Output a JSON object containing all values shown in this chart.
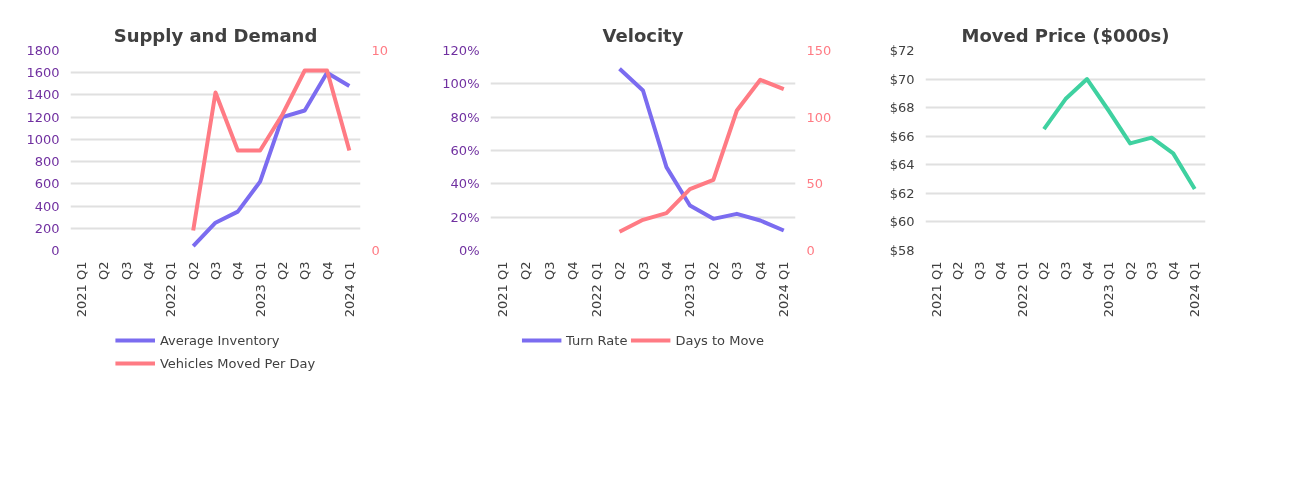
{
  "chart_data": [
    {
      "type": "line",
      "title": "Supply and Demand",
      "categories": [
        "2021 Q1",
        "Q2",
        "Q3",
        "Q4",
        "2022 Q1",
        "Q2",
        "Q3",
        "Q4",
        "2023 Q1",
        "Q2",
        "Q3",
        "Q4",
        "2024 Q1"
      ],
      "series": [
        {
          "name": "Average Inventory",
          "color": "#7b6cf0",
          "values": [
            null,
            null,
            null,
            null,
            null,
            40,
            250,
            350,
            620,
            1200,
            1260,
            1600,
            1480
          ]
        },
        {
          "name": "Vehicles Moved Per Day",
          "color": "#ff7b84",
          "axis": "y2",
          "values": [
            null,
            null,
            null,
            null,
            null,
            1.0,
            7.9,
            5.0,
            5.0,
            6.8,
            9.0,
            9.0,
            5.0
          ]
        }
      ],
      "ylim": [
        0,
        1800
      ],
      "yticks": [
        0,
        200,
        400,
        600,
        800,
        1000,
        1200,
        1400,
        1600,
        1800
      ],
      "y2lim": [
        0,
        10
      ],
      "y2ticks": [
        0,
        10
      ],
      "grid": "y",
      "legend": "bottom"
    },
    {
      "type": "line",
      "title": "Velocity",
      "categories": [
        "2021 Q1",
        "Q2",
        "Q3",
        "Q4",
        "2022 Q1",
        "Q2",
        "Q3",
        "Q4",
        "2023 Q1",
        "Q2",
        "Q3",
        "Q4",
        "2024 Q1"
      ],
      "series": [
        {
          "name": "Turn Rate",
          "color": "#7b6cf0",
          "values": [
            null,
            null,
            null,
            null,
            null,
            109,
            96,
            50,
            27,
            19,
            22,
            18,
            12
          ]
        },
        {
          "name": "Days to Move",
          "color": "#ff7b84",
          "axis": "y2",
          "values": [
            null,
            null,
            null,
            null,
            null,
            14,
            23,
            28,
            46,
            53,
            105,
            128,
            121
          ]
        }
      ],
      "ylim": [
        0,
        120
      ],
      "yticks": [
        {
          "value": 0,
          "label": "0%"
        },
        {
          "value": 20,
          "label": "20%"
        },
        {
          "value": 40,
          "label": "40%"
        },
        {
          "value": 60,
          "label": "60%"
        },
        {
          "value": 80,
          "label": "80%"
        },
        {
          "value": 100,
          "label": "100%"
        },
        {
          "value": 120,
          "label": "120%"
        }
      ],
      "y2lim": [
        0,
        150
      ],
      "y2ticks": [
        0,
        50,
        100,
        150
      ],
      "grid": "y",
      "legend": "bottom"
    },
    {
      "type": "line",
      "title": "Moved Price ($000s)",
      "categories": [
        "2021 Q1",
        "Q2",
        "Q3",
        "Q4",
        "2022 Q1",
        "Q2",
        "Q3",
        "Q4",
        "2023 Q1",
        "Q2",
        "Q3",
        "Q4",
        "2024 Q1"
      ],
      "series": [
        {
          "color": "#3fd1a0",
          "values": [
            null,
            null,
            null,
            null,
            null,
            66.5,
            68.6,
            70.0,
            67.8,
            65.5,
            65.9,
            64.8,
            62.3
          ]
        }
      ],
      "ylim": [
        58,
        72
      ],
      "yticks": [
        {
          "value": 58,
          "label": "$58"
        },
        {
          "value": 60,
          "label": "$60"
        },
        {
          "value": 62,
          "label": "$62"
        },
        {
          "value": 64,
          "label": "$64"
        },
        {
          "value": 66,
          "label": "$66"
        },
        {
          "value": 68,
          "label": "$68"
        },
        {
          "value": 70,
          "label": "$70"
        },
        {
          "value": 72,
          "label": "$72"
        }
      ],
      "grid": "y"
    }
  ]
}
